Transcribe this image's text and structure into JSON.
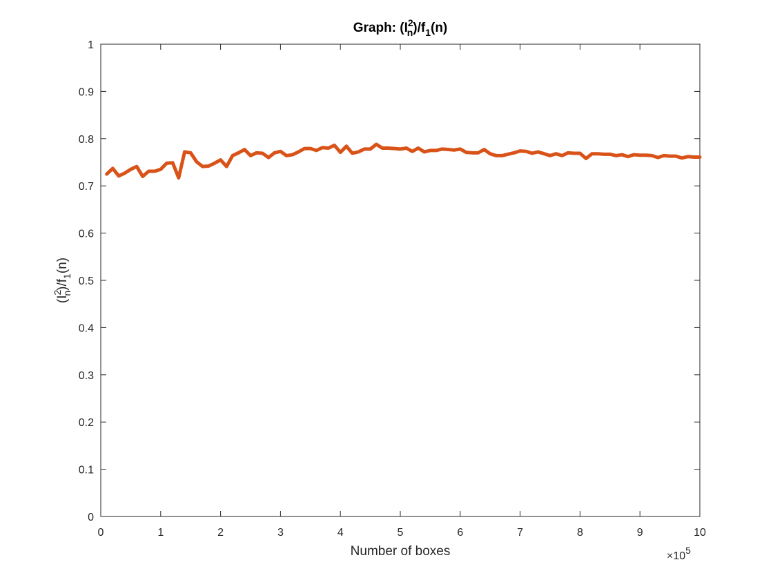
{
  "chart_data": {
    "type": "line",
    "title_main": "Graph: (I",
    "title_sup": "2",
    "title_sub": "n",
    "title_mid": ")/f",
    "title_sub2": "1",
    "title_end": "(n)",
    "xlabel": "Number of boxes",
    "ylabel_main": "(I",
    "ylabel_sup": "2",
    "ylabel_sub": "n",
    "ylabel_mid": ")/f",
    "ylabel_sub2": "1",
    "ylabel_end": "(n)",
    "x_exponent_base": "×10",
    "x_exponent_power": "5",
    "xlim": [
      0,
      10
    ],
    "ylim": [
      0,
      1
    ],
    "x_ticks": [
      "0",
      "1",
      "2",
      "3",
      "4",
      "5",
      "6",
      "7",
      "8",
      "9",
      "10"
    ],
    "y_ticks": [
      "0",
      "0.1",
      "0.2",
      "0.3",
      "0.4",
      "0.5",
      "0.6",
      "0.7",
      "0.8",
      "0.9",
      "1"
    ],
    "grid": false,
    "line_color": "#d95319",
    "series": [
      {
        "x": [
          0.1,
          0.2,
          0.3,
          0.4,
          0.5,
          0.6,
          0.7,
          0.8,
          0.9,
          1.0,
          1.1,
          1.2,
          1.3,
          1.4,
          1.5,
          1.6,
          1.7,
          1.8,
          1.9,
          2.0,
          2.1,
          2.2,
          2.3,
          2.4,
          2.5,
          2.6,
          2.7,
          2.8,
          2.9,
          3.0,
          3.1,
          3.2,
          3.3,
          3.4,
          3.5,
          3.6,
          3.7,
          3.8,
          3.9,
          4.0,
          4.1,
          4.2,
          4.3,
          4.4,
          4.5,
          4.6,
          4.7,
          4.8,
          4.9,
          5.0,
          5.1,
          5.2,
          5.3,
          5.4,
          5.5,
          5.6,
          5.7,
          5.8,
          5.9,
          6.0,
          6.1,
          6.2,
          6.3,
          6.4,
          6.5,
          6.6,
          6.7,
          6.8,
          6.9,
          7.0,
          7.1,
          7.2,
          7.3,
          7.4,
          7.5,
          7.6,
          7.7,
          7.8,
          7.9,
          8.0,
          8.1,
          8.2,
          8.3,
          8.4,
          8.5,
          8.6,
          8.7,
          8.8,
          8.9,
          9.0,
          9.1,
          9.2,
          9.3,
          9.4,
          9.5,
          9.6,
          9.7,
          9.8,
          9.9,
          10.0
        ],
        "y": [
          0.725,
          0.737,
          0.721,
          0.727,
          0.735,
          0.741,
          0.72,
          0.731,
          0.731,
          0.735,
          0.748,
          0.749,
          0.717,
          0.772,
          0.77,
          0.751,
          0.741,
          0.742,
          0.748,
          0.755,
          0.741,
          0.764,
          0.77,
          0.777,
          0.764,
          0.77,
          0.769,
          0.76,
          0.77,
          0.773,
          0.764,
          0.766,
          0.772,
          0.779,
          0.779,
          0.775,
          0.781,
          0.78,
          0.786,
          0.771,
          0.784,
          0.769,
          0.772,
          0.778,
          0.778,
          0.788,
          0.78,
          0.78,
          0.779,
          0.778,
          0.78,
          0.773,
          0.78,
          0.772,
          0.775,
          0.775,
          0.778,
          0.777,
          0.776,
          0.778,
          0.771,
          0.77,
          0.77,
          0.777,
          0.768,
          0.764,
          0.764,
          0.767,
          0.77,
          0.774,
          0.773,
          0.769,
          0.772,
          0.768,
          0.764,
          0.768,
          0.764,
          0.77,
          0.769,
          0.769,
          0.758,
          0.768,
          0.768,
          0.767,
          0.767,
          0.764,
          0.766,
          0.762,
          0.766,
          0.765,
          0.765,
          0.764,
          0.76,
          0.764,
          0.763,
          0.763,
          0.759,
          0.762,
          0.761,
          0.761
        ]
      }
    ]
  }
}
